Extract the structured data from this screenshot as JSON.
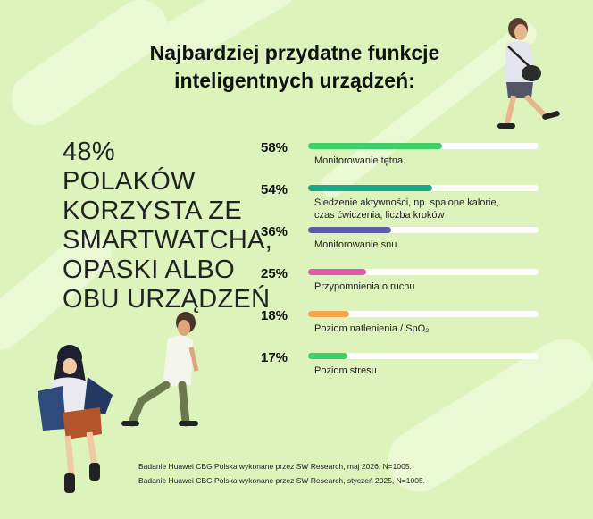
{
  "title_line1": "Najbardziej przydatne funkcje",
  "title_line2": "inteligentnych urządzeń:",
  "headline_lines": [
    "48%",
    "POLAKÓW",
    "KORZYSTA ZE",
    "SMARTWATCHA,",
    "OPASKI ALBO",
    "OBU URZĄDZEŃ"
  ],
  "chart_data": {
    "type": "bar",
    "orientation": "horizontal",
    "categories": [
      "Monitorowanie tętna",
      "Śledzenie aktywności, np. spalone kalorie, czas ćwiczenia, liczba kroków",
      "Monitorowanie snu",
      "Przypomnienia o ruchu",
      "Poziom natlenienia / SpO₂",
      "Poziom stresu"
    ],
    "values": [
      58,
      54,
      36,
      25,
      18,
      17
    ],
    "value_labels": [
      "58%",
      "54%",
      "36%",
      "25%",
      "18%",
      "17%"
    ],
    "colors": [
      "#3ecf69",
      "#18a98f",
      "#5b5ca8",
      "#e257ac",
      "#f5a64d",
      "#3ecf69"
    ],
    "xlim": [
      0,
      100
    ]
  },
  "labels": [
    [
      "Monitorowanie tętna"
    ],
    [
      "Śledzenie aktywności, np. spalone kalorie,",
      "czas ćwiczenia, liczba kroków"
    ],
    [
      "Monitorowanie snu"
    ],
    [
      "Przypomnienia o ruchu"
    ],
    [
      "Poziom natlenienia / SpO₂"
    ],
    [
      "Poziom stresu"
    ]
  ],
  "source_lines": [
    "Badanie Huawei CBG Polska wykonane przez SW Research, maj 2026, N=1005.",
    "Badanie Huawei CBG Polska wykonane przez SW Research, styczeń 2025, N=1005."
  ],
  "colors": {
    "background": "#dcf3bc",
    "track": "#ffffff"
  }
}
